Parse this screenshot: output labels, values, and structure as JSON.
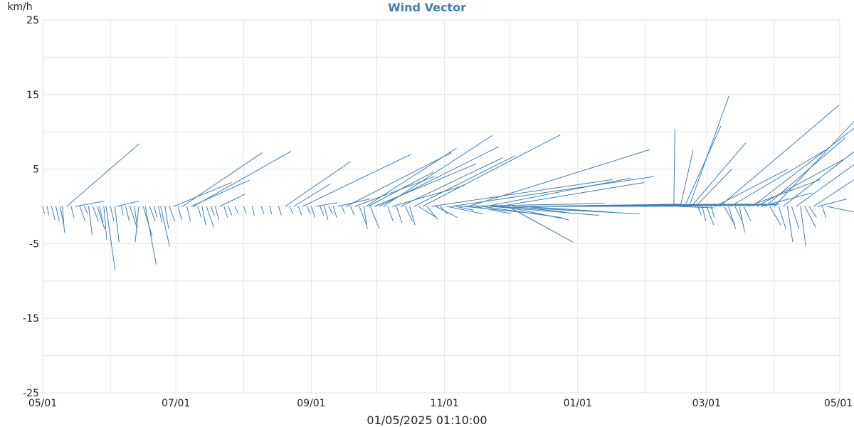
{
  "chart_data": {
    "type": "vector",
    "title": "Wind Vector",
    "ylabel": "km/h",
    "xlabel": "01/05/2025 01:10:00",
    "ylim": [
      -25,
      25
    ],
    "yticks": [
      -25,
      -15,
      -5,
      5,
      15,
      25
    ],
    "xlim": [
      "2025-05-01",
      "2026-05-01"
    ],
    "xticks": [
      {
        "date": "2025-05-01",
        "label": "05/01"
      },
      {
        "date": "2025-07-01",
        "label": "07/01"
      },
      {
        "date": "2025-09-01",
        "label": "09/01"
      },
      {
        "date": "2025-11-01",
        "label": "11/01"
      },
      {
        "date": "2026-01-01",
        "label": "01/01"
      },
      {
        "date": "2026-03-01",
        "label": "03/01"
      },
      {
        "date": "2026-05-01",
        "label": "05/01"
      }
    ],
    "grid": true,
    "color": "#3b7fb6",
    "vectors": [
      {
        "date": "2025-05-01",
        "u": 0.5,
        "v": -1.0
      },
      {
        "date": "2025-05-03",
        "u": 0.5,
        "v": -1.2
      },
      {
        "date": "2025-05-05",
        "u": 1.0,
        "v": -1.8
      },
      {
        "date": "2025-05-07",
        "u": 1.0,
        "v": -2.0
      },
      {
        "date": "2025-05-09",
        "u": 1.0,
        "v": -2.5
      },
      {
        "date": "2025-05-10",
        "u": 0.6,
        "v": -3.5
      },
      {
        "date": "2025-05-12",
        "u": 20.0,
        "v": 8.4
      },
      {
        "date": "2025-05-14",
        "u": 0.8,
        "v": -1.5
      },
      {
        "date": "2025-05-16",
        "u": 8.0,
        "v": 0.7
      },
      {
        "date": "2025-05-18",
        "u": 1.5,
        "v": -2.0
      },
      {
        "date": "2025-05-20",
        "u": 1.0,
        "v": -1.0
      },
      {
        "date": "2025-05-22",
        "u": 1.0,
        "v": -3.8
      },
      {
        "date": "2025-05-24",
        "u": 1.5,
        "v": -2.0
      },
      {
        "date": "2025-05-26",
        "u": 2.0,
        "v": -3.0
      },
      {
        "date": "2025-05-27",
        "u": 1.0,
        "v": -2.2
      },
      {
        "date": "2025-05-29",
        "u": 0.8,
        "v": -4.5
      },
      {
        "date": "2025-05-30",
        "u": 2.5,
        "v": -8.5
      },
      {
        "date": "2025-06-01",
        "u": 1.0,
        "v": -2.0
      },
      {
        "date": "2025-06-03",
        "u": 1.2,
        "v": -4.8
      },
      {
        "date": "2025-06-04",
        "u": 6.0,
        "v": 0.7
      },
      {
        "date": "2025-06-06",
        "u": 0.5,
        "v": -1.2
      },
      {
        "date": "2025-06-08",
        "u": 1.0,
        "v": -2.0
      },
      {
        "date": "2025-06-10",
        "u": 2.0,
        "v": -3.0
      },
      {
        "date": "2025-06-12",
        "u": 0.8,
        "v": -2.8
      },
      {
        "date": "2025-06-14",
        "u": -1.0,
        "v": -4.8
      },
      {
        "date": "2025-06-16",
        "u": 2.5,
        "v": -4.0
      },
      {
        "date": "2025-06-17",
        "u": 3.0,
        "v": -7.8
      },
      {
        "date": "2025-06-19",
        "u": 1.5,
        "v": -2.0
      },
      {
        "date": "2025-06-21",
        "u": 0.8,
        "v": -1.5
      },
      {
        "date": "2025-06-23",
        "u": 1.0,
        "v": -2.2
      },
      {
        "date": "2025-06-24",
        "u": 2.5,
        "v": -5.4
      },
      {
        "date": "2025-06-26",
        "u": 1.0,
        "v": -3.0
      },
      {
        "date": "2025-06-28",
        "u": 1.5,
        "v": -2.0
      },
      {
        "date": "2025-06-30",
        "u": 16.0,
        "v": 3.2
      },
      {
        "date": "2025-07-02",
        "u": 1.0,
        "v": -1.8
      },
      {
        "date": "2025-07-04",
        "u": 22.0,
        "v": 7.2
      },
      {
        "date": "2025-07-06",
        "u": 1.0,
        "v": -2.0
      },
      {
        "date": "2025-07-08",
        "u": 16.0,
        "v": 3.5
      },
      {
        "date": "2025-07-09",
        "u": 27.0,
        "v": 7.4
      },
      {
        "date": "2025-07-11",
        "u": 1.0,
        "v": -1.5
      },
      {
        "date": "2025-07-13",
        "u": 1.0,
        "v": -2.5
      },
      {
        "date": "2025-07-15",
        "u": 2.0,
        "v": -2.8
      },
      {
        "date": "2025-07-17",
        "u": 1.0,
        "v": -1.2
      },
      {
        "date": "2025-07-19",
        "u": 1.0,
        "v": -1.8
      },
      {
        "date": "2025-07-21",
        "u": 7.0,
        "v": 1.6
      },
      {
        "date": "2025-07-23",
        "u": 1.0,
        "v": -1.5
      },
      {
        "date": "2025-07-25",
        "u": 1.0,
        "v": -1.2
      },
      {
        "date": "2025-07-28",
        "u": 1.0,
        "v": -1.0
      },
      {
        "date": "2025-08-01",
        "u": 0.8,
        "v": -1.0
      },
      {
        "date": "2025-08-05",
        "u": 0.5,
        "v": -1.2
      },
      {
        "date": "2025-08-09",
        "u": 0.8,
        "v": -1.0
      },
      {
        "date": "2025-08-13",
        "u": 0.5,
        "v": -1.0
      },
      {
        "date": "2025-08-17",
        "u": 0.8,
        "v": -1.2
      },
      {
        "date": "2025-08-20",
        "u": 18.0,
        "v": 6.0
      },
      {
        "date": "2025-08-22",
        "u": 1.0,
        "v": -1.0
      },
      {
        "date": "2025-08-24",
        "u": 10.0,
        "v": 3.0
      },
      {
        "date": "2025-08-26",
        "u": 1.0,
        "v": -1.2
      },
      {
        "date": "2025-08-28",
        "u": 30.0,
        "v": 7.0
      },
      {
        "date": "2025-08-30",
        "u": 1.0,
        "v": -1.0
      },
      {
        "date": "2025-09-01",
        "u": 1.0,
        "v": -1.5
      },
      {
        "date": "2025-09-03",
        "u": 6.0,
        "v": 0.5
      },
      {
        "date": "2025-09-05",
        "u": 1.0,
        "v": -1.2
      },
      {
        "date": "2025-09-07",
        "u": 1.0,
        "v": -1.8
      },
      {
        "date": "2025-09-09",
        "u": 1.0,
        "v": -1.0
      },
      {
        "date": "2025-09-11",
        "u": 1.0,
        "v": -1.5
      },
      {
        "date": "2025-09-13",
        "u": 9.0,
        "v": 1.0
      },
      {
        "date": "2025-09-15",
        "u": 0.8,
        "v": -1.0
      },
      {
        "date": "2025-09-17",
        "u": 29.0,
        "v": 7.2
      },
      {
        "date": "2025-09-19",
        "u": 1.0,
        "v": -1.2
      },
      {
        "date": "2025-09-21",
        "u": 22.0,
        "v": 4.0
      },
      {
        "date": "2025-09-23",
        "u": 2.0,
        "v": -2.5
      },
      {
        "date": "2025-09-25",
        "u": 1.0,
        "v": -3.0
      },
      {
        "date": "2025-09-26",
        "u": 25.0,
        "v": 7.8
      },
      {
        "date": "2025-09-27",
        "u": 18.0,
        "v": 4.6
      },
      {
        "date": "2025-09-28",
        "u": 2.5,
        "v": -3.0
      },
      {
        "date": "2025-09-30",
        "u": 28.0,
        "v": 5.7
      },
      {
        "date": "2025-10-02",
        "u": 33.0,
        "v": 8.0
      },
      {
        "date": "2025-10-04",
        "u": 30.0,
        "v": 9.5
      },
      {
        "date": "2025-10-06",
        "u": 1.5,
        "v": -2.0
      },
      {
        "date": "2025-10-08",
        "u": 20.0,
        "v": 2.8
      },
      {
        "date": "2025-10-10",
        "u": 1.5,
        "v": -2.2
      },
      {
        "date": "2025-10-12",
        "u": 28.0,
        "v": 6.5
      },
      {
        "date": "2025-10-14",
        "u": 2.0,
        "v": -2.0
      },
      {
        "date": "2025-10-16",
        "u": 1.5,
        "v": -2.5
      },
      {
        "date": "2025-10-18",
        "u": 28.0,
        "v": 6.8
      },
      {
        "date": "2025-10-20",
        "u": 5.0,
        "v": -1.5
      },
      {
        "date": "2025-10-22",
        "u": 38.0,
        "v": 9.6
      },
      {
        "date": "2025-10-24",
        "u": 3.0,
        "v": -1.8
      },
      {
        "date": "2025-10-26",
        "u": 50.0,
        "v": 3.6
      },
      {
        "date": "2025-10-28",
        "u": 6.0,
        "v": -1.5
      },
      {
        "date": "2025-10-30",
        "u": 2.0,
        "v": -1.0
      },
      {
        "date": "2025-11-02",
        "u": 10.0,
        "v": -1.0
      },
      {
        "date": "2025-11-04",
        "u": 56.0,
        "v": 4.0
      },
      {
        "date": "2025-11-06",
        "u": 5.0,
        "v": -0.5
      },
      {
        "date": "2025-11-08",
        "u": 40.0,
        "v": 0.4
      },
      {
        "date": "2025-11-10",
        "u": 20.0,
        "v": -1.0
      },
      {
        "date": "2025-11-12",
        "u": 50.0,
        "v": 7.6
      },
      {
        "date": "2025-11-15",
        "u": 10.0,
        "v": -1.0
      },
      {
        "date": "2025-11-18",
        "u": 22.0,
        "v": -1.5
      },
      {
        "date": "2025-11-20",
        "u": 40.0,
        "v": 3.8
      },
      {
        "date": "2025-11-22",
        "u": 30.0,
        "v": -1.2
      },
      {
        "date": "2025-11-24",
        "u": 40.0,
        "v": -1.0
      },
      {
        "date": "2025-11-26",
        "u": 40.0,
        "v": 3.2
      },
      {
        "date": "2025-11-28",
        "u": 18.0,
        "v": -1.8
      },
      {
        "date": "2025-11-30",
        "u": 18.0,
        "v": -4.8
      },
      {
        "date": "2025-12-02",
        "u": 15.0,
        "v": -0.8
      },
      {
        "date": "2025-12-05",
        "u": 20.0,
        "v": -0.6
      },
      {
        "date": "2025-12-07",
        "u": 25.0,
        "v": -0.8
      },
      {
        "date": "2025-12-10",
        "u": 30.0,
        "v": 0.2
      },
      {
        "date": "2025-12-13",
        "u": 40.0,
        "v": 0.3
      },
      {
        "date": "2025-12-16",
        "u": 50.0,
        "v": 0.3
      },
      {
        "date": "2025-12-19",
        "u": 55.0,
        "v": 0.3
      },
      {
        "date": "2025-12-22",
        "u": 60.0,
        "v": 0.3
      },
      {
        "date": "2025-12-25",
        "u": 60.0,
        "v": 0.3
      },
      {
        "date": "2026-01-01",
        "u": 55.0,
        "v": 0.2
      },
      {
        "date": "2026-01-05",
        "u": 50.0,
        "v": 0.2
      },
      {
        "date": "2026-01-10",
        "u": 50.0,
        "v": 0.3
      },
      {
        "date": "2026-01-15",
        "u": 45.0,
        "v": 0.2
      },
      {
        "date": "2026-01-20",
        "u": 40.0,
        "v": 0.2
      },
      {
        "date": "2026-01-25",
        "u": 35.0,
        "v": 0.3
      },
      {
        "date": "2026-01-30",
        "u": 30.0,
        "v": 0.2
      },
      {
        "date": "2026-02-04",
        "u": 25.0,
        "v": 0.3
      },
      {
        "date": "2026-02-10",
        "u": 20.0,
        "v": 0.2
      },
      {
        "date": "2026-02-14",
        "u": 0.3,
        "v": 10.4
      },
      {
        "date": "2026-02-16",
        "u": 10.0,
        "v": -0.2
      },
      {
        "date": "2026-02-17",
        "u": 3.5,
        "v": 7.5
      },
      {
        "date": "2026-02-19",
        "u": 10.0,
        "v": 10.8
      },
      {
        "date": "2026-02-21",
        "u": 11.0,
        "v": 14.8
      },
      {
        "date": "2026-02-22",
        "u": 15.0,
        "v": 8.5
      },
      {
        "date": "2026-02-24",
        "u": 10.0,
        "v": 5.0
      },
      {
        "date": "2026-02-25",
        "u": 1.0,
        "v": -1.2
      },
      {
        "date": "2026-02-27",
        "u": 1.0,
        "v": -2.0
      },
      {
        "date": "2026-03-01",
        "u": 2.0,
        "v": -2.5
      },
      {
        "date": "2026-03-03",
        "u": 1.0,
        "v": -1.5
      },
      {
        "date": "2026-03-05",
        "u": 20.0,
        "v": 5.0
      },
      {
        "date": "2026-03-07",
        "u": 33.0,
        "v": 13.6
      },
      {
        "date": "2026-03-09",
        "u": 3.0,
        "v": -2.5
      },
      {
        "date": "2026-03-11",
        "u": 2.0,
        "v": -3.0
      },
      {
        "date": "2026-03-12",
        "u": 26.0,
        "v": 7.5
      },
      {
        "date": "2026-03-14",
        "u": 2.0,
        "v": -2.0
      },
      {
        "date": "2026-03-16",
        "u": 1.5,
        "v": -3.5
      },
      {
        "date": "2026-03-18",
        "u": 2.0,
        "v": -2.0
      },
      {
        "date": "2026-03-20",
        "u": 20.0,
        "v": 3.6
      },
      {
        "date": "2026-03-22",
        "u": 30.0,
        "v": 11.2
      },
      {
        "date": "2026-03-24",
        "u": 24.0,
        "v": 6.3
      },
      {
        "date": "2026-03-26",
        "u": 14.0,
        "v": 1.8
      },
      {
        "date": "2026-03-28",
        "u": 22.0,
        "v": 9.2
      },
      {
        "date": "2026-03-30",
        "u": 3.0,
        "v": -2.5
      },
      {
        "date": "2026-04-01",
        "u": 28.0,
        "v": 14.5
      },
      {
        "date": "2026-04-03",
        "u": 2.0,
        "v": -3.0
      },
      {
        "date": "2026-04-05",
        "u": 30.0,
        "v": 11.2
      },
      {
        "date": "2026-04-07",
        "u": 1.5,
        "v": -4.8
      },
      {
        "date": "2026-04-09",
        "u": 2.0,
        "v": -3.0
      },
      {
        "date": "2026-04-11",
        "u": 18.0,
        "v": 6.3
      },
      {
        "date": "2026-04-13",
        "u": 1.5,
        "v": -5.4
      },
      {
        "date": "2026-04-15",
        "u": 3.0,
        "v": -2.8
      },
      {
        "date": "2026-04-17",
        "u": 2.0,
        "v": -1.5
      },
      {
        "date": "2026-04-19",
        "u": 35.0,
        "v": 11.2
      },
      {
        "date": "2026-04-21",
        "u": 8.0,
        "v": 1.0
      },
      {
        "date": "2026-04-23",
        "u": 1.0,
        "v": -1.5
      },
      {
        "date": "2026-04-25",
        "u": 10.0,
        "v": -1.0
      }
    ]
  }
}
